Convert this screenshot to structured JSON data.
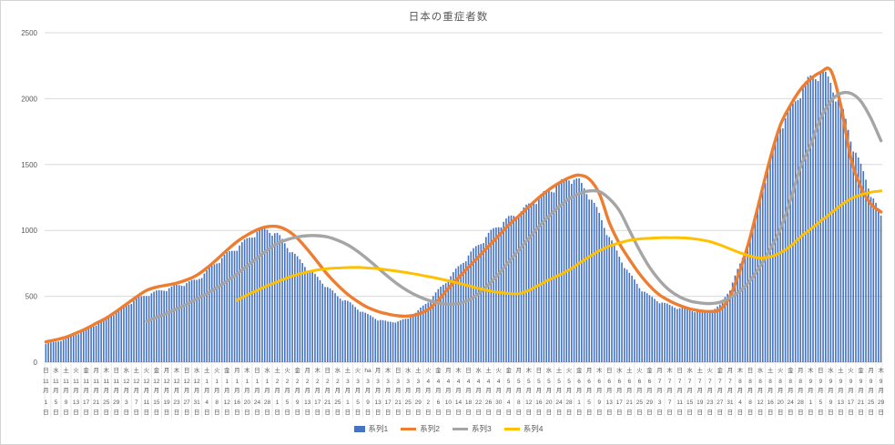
{
  "title": "日本の重症者数",
  "colors": {
    "bar": "#4472C4",
    "series2": "#ED7D31",
    "series3": "#A5A5A5",
    "series4": "#FFC000",
    "grid": "#D9D9D9",
    "axis_line": "#C9C9C9",
    "axis_text": "#595959",
    "label_separator": "#E8E8E8"
  },
  "y_axis": {
    "ticks": [
      0,
      500,
      1000,
      1500,
      2000,
      2500
    ]
  },
  "legend": [
    {
      "label": "系列1",
      "type": "bar",
      "color": "#4472C4"
    },
    {
      "label": "系列2",
      "type": "line",
      "color": "#ED7D31"
    },
    {
      "label": "系列3",
      "type": "line",
      "color": "#A5A5A5"
    },
    {
      "label": "系列4",
      "type": "line",
      "color": "#FFC000"
    }
  ],
  "chart_data": {
    "type": "bar",
    "title": "日本の重症者数",
    "ylim": [
      0,
      2500
    ],
    "grid": true,
    "legend_position": "bottom",
    "label_interval_days": 4,
    "x_label_rows": [
      "weekday",
      "month",
      "月",
      "day",
      "日"
    ],
    "x_labels": [
      [
        "日",
        11,
        1
      ],
      [
        "水",
        11,
        5
      ],
      [
        "土",
        11,
        9
      ],
      [
        "火",
        11,
        13
      ],
      [
        "金",
        11,
        17
      ],
      [
        "月",
        11,
        21
      ],
      [
        "木",
        11,
        25
      ],
      [
        "日",
        11,
        29
      ],
      [
        "水",
        12,
        3
      ],
      [
        "土",
        12,
        7
      ],
      [
        "火",
        12,
        11
      ],
      [
        "金",
        12,
        15
      ],
      [
        "月",
        12,
        19
      ],
      [
        "木",
        12,
        23
      ],
      [
        "日",
        12,
        27
      ],
      [
        "水",
        12,
        31
      ],
      [
        "土",
        1,
        4
      ],
      [
        "火",
        1,
        8
      ],
      [
        "金",
        1,
        12
      ],
      [
        "月",
        1,
        16
      ],
      [
        "木",
        1,
        20
      ],
      [
        "日",
        1,
        24
      ],
      [
        "水",
        1,
        28
      ],
      [
        "土",
        2,
        1
      ],
      [
        "火",
        2,
        5
      ],
      [
        "金",
        2,
        9
      ],
      [
        "月",
        2,
        13
      ],
      [
        "木",
        2,
        17
      ],
      [
        "日",
        2,
        21
      ],
      [
        "水",
        2,
        25
      ],
      [
        "土",
        3,
        1
      ],
      [
        "火",
        3,
        5
      ],
      [
        "ha",
        3,
        9
      ],
      [
        "月",
        3,
        13
      ],
      [
        "木",
        3,
        17
      ],
      [
        "日",
        3,
        21
      ],
      [
        "水",
        3,
        25
      ],
      [
        "土",
        3,
        29
      ],
      [
        "火",
        4,
        2
      ],
      [
        "金",
        4,
        6
      ],
      [
        "月",
        4,
        10
      ],
      [
        "木",
        4,
        14
      ],
      [
        "日",
        4,
        18
      ],
      [
        "水",
        4,
        22
      ],
      [
        "土",
        4,
        26
      ],
      [
        "火",
        4,
        30
      ],
      [
        "金",
        5,
        4
      ],
      [
        "月",
        5,
        8
      ],
      [
        "木",
        5,
        12
      ],
      [
        "日",
        5,
        16
      ],
      [
        "水",
        5,
        20
      ],
      [
        "土",
        5,
        24
      ],
      [
        "火",
        5,
        28
      ],
      [
        "金",
        6,
        1
      ],
      [
        "月",
        6,
        5
      ],
      [
        "木",
        6,
        9
      ],
      [
        "日",
        6,
        13
      ],
      [
        "水",
        6,
        17
      ],
      [
        "土",
        6,
        21
      ],
      [
        "火",
        6,
        25
      ],
      [
        "金",
        6,
        29
      ],
      [
        "月",
        7,
        3
      ],
      [
        "木",
        7,
        7
      ],
      [
        "日",
        7,
        11
      ],
      [
        "水",
        7,
        15
      ],
      [
        "土",
        7,
        19
      ],
      [
        "火",
        7,
        23
      ],
      [
        "金",
        7,
        27
      ],
      [
        "月",
        7,
        31
      ],
      [
        "木",
        8,
        4
      ],
      [
        "日",
        8,
        8
      ],
      [
        "水",
        8,
        12
      ],
      [
        "土",
        8,
        16
      ],
      [
        "火",
        8,
        20
      ],
      [
        "金",
        8,
        24
      ],
      [
        "月",
        8,
        28
      ],
      [
        "木",
        9,
        1
      ],
      [
        "日",
        9,
        5
      ],
      [
        "水",
        9,
        9
      ],
      [
        "土",
        9,
        13
      ],
      [
        "火",
        9,
        17
      ],
      [
        "金",
        9,
        21
      ],
      [
        "月",
        9,
        25
      ],
      [
        "木",
        9,
        29
      ]
    ],
    "series": [
      {
        "name": "系列1",
        "type": "bar",
        "color": "#4472C4",
        "values": [
          140,
          155,
          175,
          210,
          245,
          285,
          330,
          380,
          430,
          480,
          510,
          535,
          555,
          580,
          600,
          625,
          690,
          760,
          820,
          870,
          930,
          990,
          1005,
          970,
          880,
          790,
          715,
          640,
          570,
          500,
          460,
          405,
          360,
          325,
          305,
          310,
          330,
          390,
          460,
          545,
          630,
          720,
          810,
          890,
          970,
          1040,
          1090,
          1130,
          1190,
          1250,
          1300,
          1350,
          1400,
          1370,
          1270,
          1120,
          950,
          800,
          670,
          570,
          500,
          460,
          430,
          410,
          395,
          385,
          380,
          430,
          560,
          740,
          950,
          1250,
          1550,
          1800,
          1900,
          2060,
          2150,
          2210,
          2120,
          1950,
          1700,
          1480,
          1290,
          1100
        ]
      },
      {
        "name": "系列2",
        "type": "line",
        "color": "#ED7D31",
        "values": [
          155,
          170,
          190,
          220,
          255,
          295,
          335,
          385,
          440,
          495,
          545,
          570,
          585,
          600,
          625,
          660,
          715,
          780,
          850,
          915,
          965,
          1005,
          1028,
          1030,
          1000,
          940,
          855,
          760,
          665,
          585,
          515,
          460,
          415,
          385,
          365,
          352,
          350,
          365,
          400,
          470,
          560,
          640,
          720,
          800,
          880,
          960,
          1040,
          1110,
          1180,
          1250,
          1310,
          1360,
          1400,
          1420,
          1390,
          1280,
          1060,
          900,
          780,
          670,
          580,
          510,
          465,
          430,
          405,
          390,
          385,
          400,
          500,
          700,
          950,
          1250,
          1550,
          1800,
          1950,
          2070,
          2150,
          2200,
          2215,
          1950,
          1550,
          1330,
          1200,
          1140
        ]
      },
      {
        "name": "系列3",
        "type": "line",
        "color": "#A5A5A5",
        "values": [
          null,
          null,
          null,
          null,
          null,
          null,
          null,
          null,
          null,
          null,
          310,
          340,
          370,
          405,
          440,
          480,
          520,
          565,
          615,
          670,
          730,
          790,
          850,
          900,
          930,
          950,
          960,
          960,
          950,
          925,
          890,
          840,
          780,
          715,
          650,
          590,
          540,
          500,
          470,
          450,
          440,
          445,
          470,
          520,
          590,
          670,
          760,
          850,
          940,
          1030,
          1110,
          1180,
          1240,
          1280,
          1300,
          1295,
          1240,
          1150,
          1000,
          850,
          720,
          620,
          545,
          495,
          465,
          450,
          445,
          455,
          490,
          540,
          620,
          730,
          860,
          1010,
          1230,
          1480,
          1650,
          1850,
          1980,
          2040,
          2040,
          1980,
          1850,
          1680
        ]
      },
      {
        "name": "系列4",
        "type": "line",
        "color": "#FFC000",
        "values": [
          null,
          null,
          null,
          null,
          null,
          null,
          null,
          null,
          null,
          null,
          null,
          null,
          null,
          null,
          null,
          null,
          null,
          null,
          null,
          470,
          510,
          545,
          580,
          610,
          640,
          665,
          685,
          700,
          710,
          715,
          718,
          720,
          715,
          710,
          700,
          690,
          678,
          665,
          650,
          635,
          618,
          600,
          580,
          560,
          542,
          530,
          522,
          520,
          545,
          585,
          625,
          660,
          700,
          750,
          800,
          845,
          880,
          905,
          925,
          935,
          940,
          945,
          945,
          945,
          940,
          930,
          915,
          890,
          860,
          830,
          805,
          790,
          800,
          830,
          880,
          950,
          1010,
          1070,
          1130,
          1190,
          1240,
          1270,
          1290,
          1300
        ]
      }
    ],
    "bar_weekly_texture": [
      1,
      1.012,
      1.018,
      1.012,
      1,
      0.985,
      0.972
    ]
  }
}
